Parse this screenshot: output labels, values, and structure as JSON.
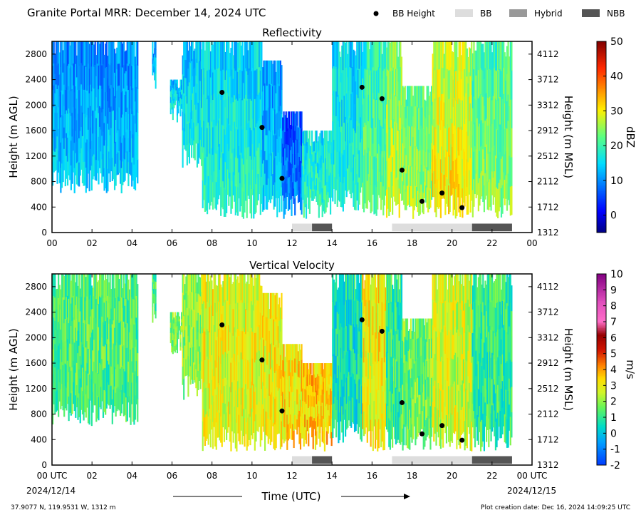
{
  "header": {
    "title": "Granite Portal MRR:  December 14, 2024 UTC",
    "legend": [
      {
        "label": "BB Height",
        "kind": "dot",
        "color": "#000000"
      },
      {
        "label": "BB",
        "kind": "box",
        "color": "#dddddd"
      },
      {
        "label": "Hybrid",
        "kind": "box",
        "color": "#999999"
      },
      {
        "label": "NBB",
        "kind": "box",
        "color": "#555555"
      }
    ]
  },
  "footer": {
    "location": "37.9077 N, 119.9531 W, 1312 m",
    "creation_date": "Plot creation date: Dec 16, 2024 14:09:25 UTC",
    "xlabel": "Time (UTC)",
    "start_date": "2024/12/14",
    "end_date": "2024/12/15"
  },
  "chart_data": [
    {
      "type": "heatmap",
      "title": "Reflectivity",
      "ylabel": "Height (m AGL)",
      "ylabel_right": "Height (m MSL)",
      "colorbar_label": "dBZ",
      "colorbar_ticks": [
        "50",
        "40",
        "30",
        "20",
        "10",
        "0"
      ],
      "colorbar_range": [
        -5,
        50
      ],
      "xlim": [
        0,
        24
      ],
      "ylim": [
        0,
        3000
      ],
      "x_ticks": [
        "00",
        "02",
        "04",
        "06",
        "08",
        "10",
        "12",
        "14",
        "16",
        "18",
        "20",
        "22",
        "00"
      ],
      "y_ticks": [
        "0",
        "400",
        "800",
        "1200",
        "1600",
        "2000",
        "2400",
        "2800"
      ],
      "y_ticks_right": [
        "1312",
        "1712",
        "2112",
        "2512",
        "2912",
        "3312",
        "3712",
        "4112"
      ],
      "bb_height": {
        "x": [
          8.5,
          10.5,
          11.5,
          15.5,
          16.5,
          17.5,
          18.5,
          19.5,
          20.5
        ],
        "y": [
          2200,
          1650,
          850,
          2280,
          2100,
          980,
          490,
          620,
          390
        ]
      },
      "precip_type": [
        {
          "type": "BB",
          "start": 12.0,
          "end": 13.0
        },
        {
          "type": "NBB",
          "start": 13.0,
          "end": 14.0
        },
        {
          "type": "BB",
          "start": 17.0,
          "end": 21.0
        },
        {
          "type": "NBB",
          "start": 21.0,
          "end": 23.0
        }
      ],
      "echo_segments": [
        {
          "start": 0.0,
          "end": 4.3,
          "top": 3000,
          "base": 700,
          "mean": 9
        },
        {
          "start": 5.0,
          "end": 5.2,
          "top": 3000,
          "base": 2300,
          "mean": 10
        },
        {
          "start": 5.9,
          "end": 6.5,
          "top": 2400,
          "base": 1800,
          "mean": 12
        },
        {
          "start": 6.5,
          "end": 7.5,
          "top": 3000,
          "base": 1100,
          "mean": 13
        },
        {
          "start": 7.5,
          "end": 10.5,
          "top": 3000,
          "base": 300,
          "mean": 14
        },
        {
          "start": 10.5,
          "end": 11.5,
          "top": 2700,
          "base": 300,
          "mean": 10
        },
        {
          "start": 11.5,
          "end": 12.5,
          "top": 1900,
          "base": 300,
          "mean": 5
        },
        {
          "start": 12.5,
          "end": 14.0,
          "top": 1600,
          "base": 300,
          "mean": 15
        },
        {
          "start": 14.0,
          "end": 15.5,
          "top": 3000,
          "base": 400,
          "mean": 14
        },
        {
          "start": 15.5,
          "end": 16.7,
          "top": 3000,
          "base": 300,
          "mean": 18
        },
        {
          "start": 16.7,
          "end": 17.5,
          "top": 3000,
          "base": 300,
          "mean": 23
        },
        {
          "start": 17.5,
          "end": 19.0,
          "top": 2300,
          "base": 300,
          "mean": 21
        },
        {
          "start": 19.0,
          "end": 21.0,
          "top": 3000,
          "base": 300,
          "mean": 26
        },
        {
          "start": 21.0,
          "end": 23.0,
          "top": 3000,
          "base": 300,
          "mean": 20
        }
      ]
    },
    {
      "type": "heatmap",
      "title": "Vertical Velocity",
      "ylabel": "Height (m AGL)",
      "ylabel_right": "Height (m MSL)",
      "colorbar_label": "m/s",
      "colorbar_ticks": [
        "10",
        "9",
        "8",
        "7",
        "6",
        "5",
        "4",
        "3",
        "2",
        "1",
        "0",
        "-1",
        "-2"
      ],
      "colorbar_range": [
        -2,
        10
      ],
      "xlim": [
        0,
        24
      ],
      "ylim": [
        0,
        3000
      ],
      "x_ticks": [
        "00 UTC",
        "02",
        "04",
        "06",
        "08",
        "10",
        "12",
        "14",
        "16",
        "18",
        "20",
        "22",
        "00 UTC"
      ],
      "y_ticks": [
        "0",
        "400",
        "800",
        "1200",
        "1600",
        "2000",
        "2400",
        "2800"
      ],
      "y_ticks_right": [
        "1312",
        "1712",
        "2112",
        "2512",
        "2912",
        "3312",
        "3712",
        "4112"
      ],
      "bb_height": {
        "x": [
          8.5,
          10.5,
          11.5,
          15.5,
          16.5,
          17.5,
          18.5,
          19.5,
          20.5
        ],
        "y": [
          2200,
          1650,
          850,
          2280,
          2100,
          980,
          490,
          620,
          390
        ]
      },
      "precip_type": [
        {
          "type": "BB",
          "start": 12.0,
          "end": 13.0
        },
        {
          "type": "NBB",
          "start": 13.0,
          "end": 14.0
        },
        {
          "type": "BB",
          "start": 17.0,
          "end": 21.0
        },
        {
          "type": "NBB",
          "start": 21.0,
          "end": 23.0
        }
      ],
      "echo_segments": [
        {
          "start": 0.0,
          "end": 4.3,
          "top": 3000,
          "base": 700,
          "mean": 1.3
        },
        {
          "start": 5.0,
          "end": 5.2,
          "top": 3000,
          "base": 2300,
          "mean": 1.3
        },
        {
          "start": 5.9,
          "end": 6.5,
          "top": 2400,
          "base": 1800,
          "mean": 1.8
        },
        {
          "start": 6.5,
          "end": 7.5,
          "top": 3000,
          "base": 1100,
          "mean": 2.0
        },
        {
          "start": 7.5,
          "end": 10.5,
          "top": 3000,
          "base": 300,
          "mean": 2.8
        },
        {
          "start": 10.5,
          "end": 11.5,
          "top": 2700,
          "base": 300,
          "mean": 3.0
        },
        {
          "start": 11.5,
          "end": 12.5,
          "top": 1900,
          "base": 300,
          "mean": 3.2
        },
        {
          "start": 12.5,
          "end": 14.0,
          "top": 1600,
          "base": 300,
          "mean": 3.5
        },
        {
          "start": 14.0,
          "end": 15.5,
          "top": 3000,
          "base": 400,
          "mean": 0.6
        },
        {
          "start": 15.5,
          "end": 16.7,
          "top": 3000,
          "base": 300,
          "mean": 3.0
        },
        {
          "start": 16.7,
          "end": 17.5,
          "top": 3000,
          "base": 300,
          "mean": 1.0
        },
        {
          "start": 17.5,
          "end": 19.0,
          "top": 2300,
          "base": 300,
          "mean": 1.6
        },
        {
          "start": 19.0,
          "end": 21.0,
          "top": 3000,
          "base": 300,
          "mean": 2.6
        },
        {
          "start": 21.0,
          "end": 23.0,
          "top": 3000,
          "base": 300,
          "mean": 1.0
        }
      ]
    }
  ]
}
